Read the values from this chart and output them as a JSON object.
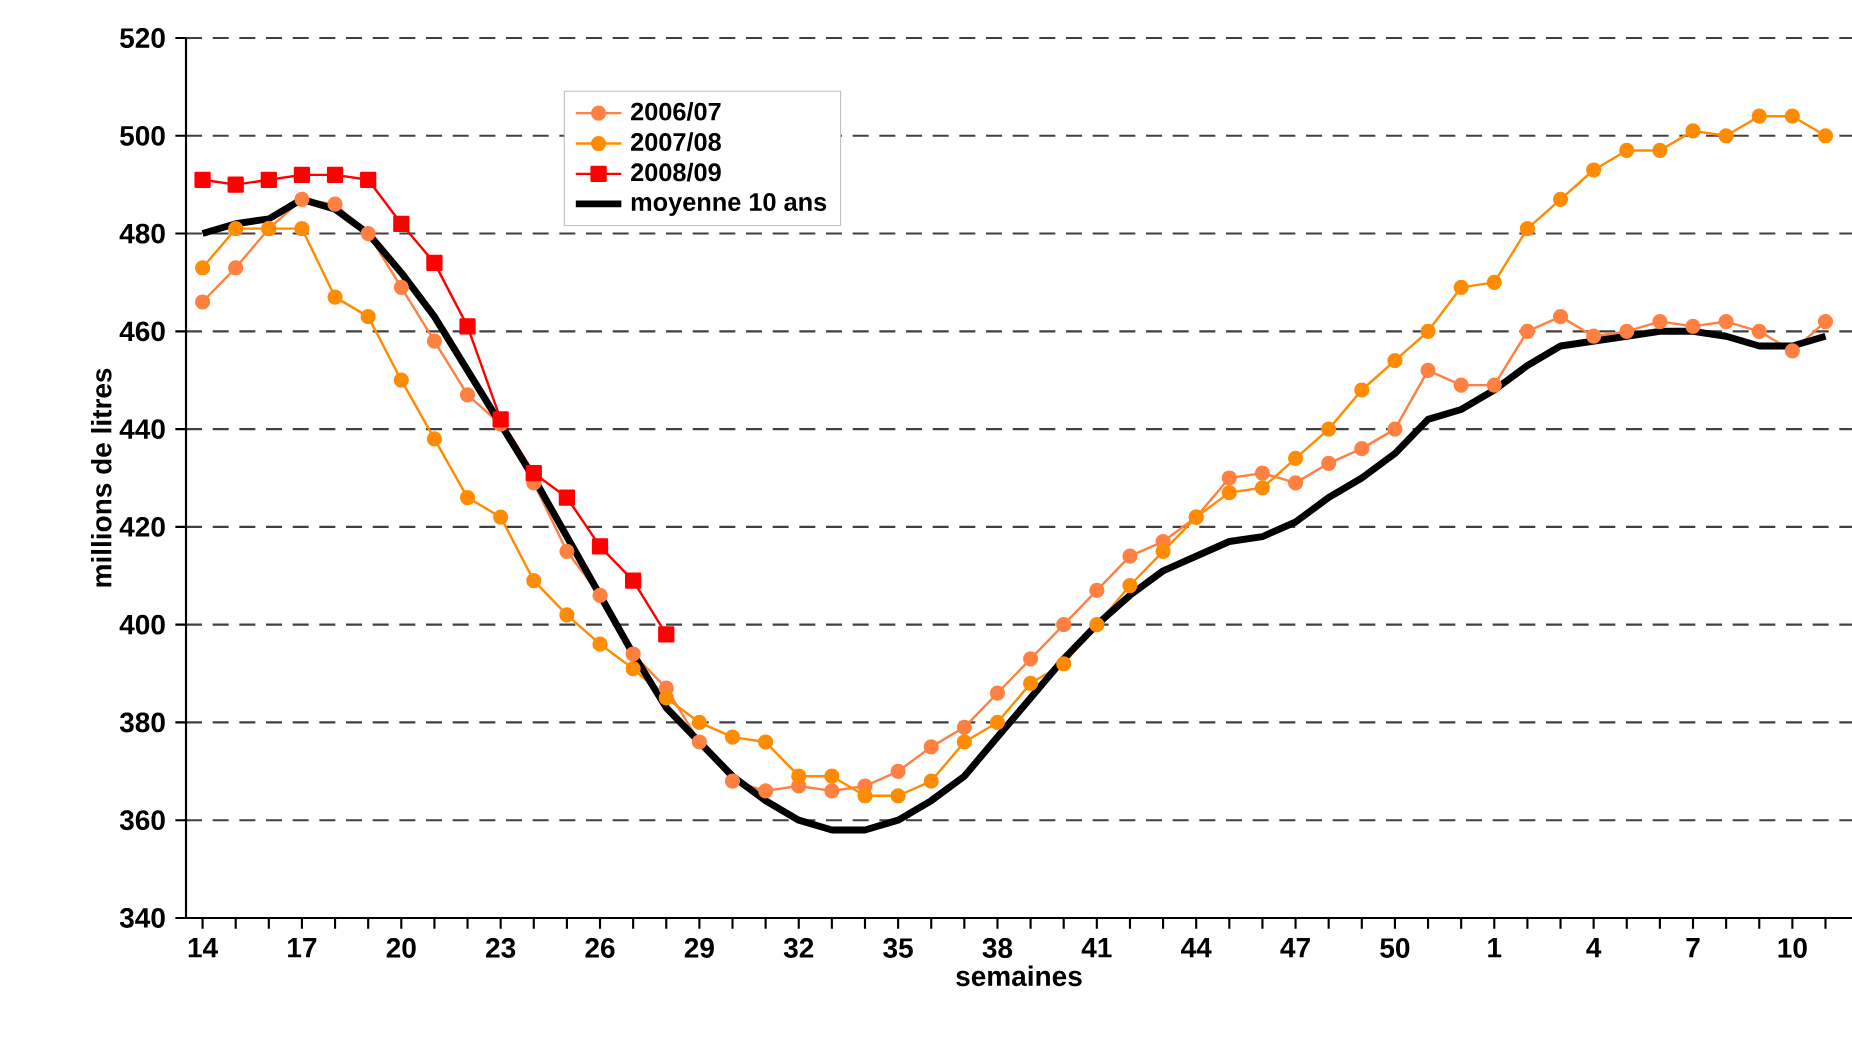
{
  "chart_data": {
    "type": "line",
    "xlabel": "semaines",
    "ylabel": "millions de litres",
    "categories": [
      "14",
      null,
      null,
      "17",
      null,
      null,
      "20",
      null,
      null,
      "23",
      null,
      null,
      "26",
      null,
      null,
      "29",
      null,
      null,
      "32",
      null,
      null,
      "35",
      null,
      null,
      "38",
      null,
      null,
      "41",
      null,
      null,
      "44",
      null,
      null,
      "47",
      null,
      null,
      "50",
      null,
      null,
      "1",
      null,
      null,
      "4",
      null,
      null,
      "7",
      null,
      null,
      "10",
      null
    ],
    "series": [
      {
        "name": "2006/07",
        "color": "#ff8040",
        "marker": "circle",
        "values": [
          466,
          473,
          481,
          487,
          486,
          480,
          469,
          458,
          447,
          441,
          429,
          415,
          406,
          394,
          387,
          376,
          368,
          366,
          367,
          366,
          367,
          370,
          375,
          379,
          386,
          393,
          400,
          407,
          414,
          417,
          422,
          430,
          431,
          429,
          433,
          436,
          440,
          452,
          449,
          449,
          460,
          463,
          459,
          460,
          462,
          461,
          462,
          460,
          456,
          462
        ]
      },
      {
        "name": "2007/08",
        "color": "#ff8c00",
        "marker": "circle",
        "values": [
          473,
          481,
          481,
          481,
          467,
          463,
          450,
          438,
          426,
          422,
          409,
          402,
          396,
          391,
          385,
          380,
          377,
          376,
          369,
          369,
          365,
          365,
          368,
          376,
          380,
          388,
          392,
          400,
          408,
          415,
          422,
          427,
          428,
          434,
          440,
          448,
          454,
          460,
          469,
          470,
          481,
          487,
          493,
          497,
          497,
          501,
          500,
          504,
          504,
          500
        ]
      },
      {
        "name": "2008/09",
        "color": "#ff0000",
        "marker": "square",
        "values": [
          491,
          490,
          491,
          492,
          492,
          491,
          482,
          474,
          461,
          442,
          431,
          426,
          416,
          409,
          398,
          null,
          null,
          null,
          null,
          null,
          null,
          null,
          null,
          null,
          null,
          null,
          null,
          null,
          null,
          null,
          null,
          null,
          null,
          null,
          null,
          null,
          null,
          null,
          null,
          null,
          null,
          null,
          null,
          null,
          null,
          null,
          null,
          null,
          null,
          null
        ]
      },
      {
        "name": "moyenne 10 ans",
        "color": "#000000",
        "marker": "none",
        "values": [
          480,
          482,
          483,
          487,
          485,
          480,
          472,
          463,
          452,
          441,
          430,
          418,
          406,
          394,
          383,
          376,
          369,
          364,
          360,
          358,
          358,
          360,
          364,
          369,
          377,
          385,
          393,
          400,
          406,
          411,
          414,
          417,
          418,
          421,
          426,
          430,
          435,
          442,
          444,
          448,
          453,
          457,
          458,
          459,
          460,
          460,
          459,
          457,
          457,
          459
        ]
      }
    ],
    "ylim": [
      340,
      520
    ],
    "yticks": [
      340,
      360,
      380,
      400,
      420,
      440,
      460,
      480,
      500,
      520
    ],
    "grid": "y",
    "legend": "top"
  }
}
